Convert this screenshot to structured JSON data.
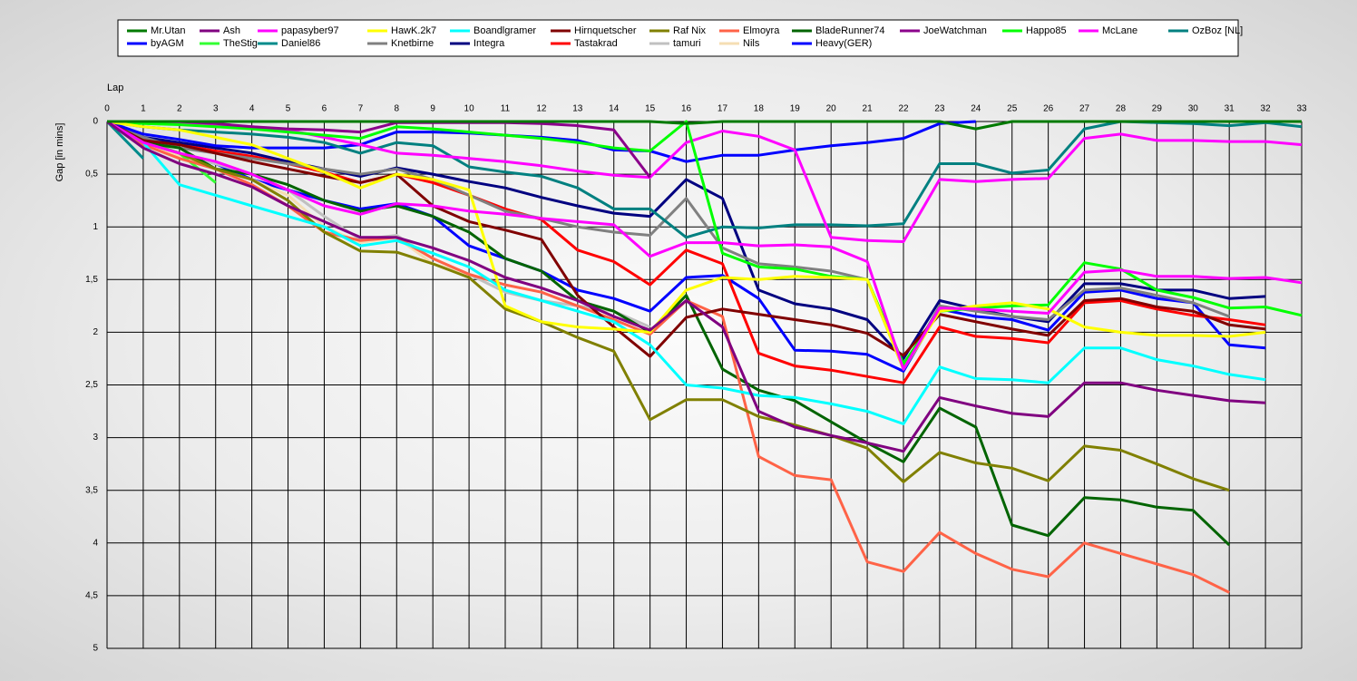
{
  "chart_data": {
    "type": "line",
    "xlabel": "Lap",
    "ylabel": "Gap [in mins]",
    "x": [
      0,
      1,
      2,
      3,
      4,
      5,
      6,
      7,
      8,
      9,
      10,
      11,
      12,
      13,
      14,
      15,
      16,
      17,
      18,
      19,
      20,
      21,
      22,
      23,
      24,
      25,
      26,
      27,
      28,
      29,
      30,
      31,
      32,
      33
    ],
    "xlim": [
      0,
      33
    ],
    "xticks": [
      0,
      1,
      2,
      3,
      4,
      5,
      6,
      7,
      8,
      9,
      10,
      11,
      12,
      13,
      14,
      15,
      16,
      17,
      18,
      19,
      20,
      21,
      22,
      23,
      24,
      25,
      26,
      27,
      28,
      29,
      30,
      31,
      32,
      33
    ],
    "ylim": [
      0,
      5
    ],
    "y_inverted": true,
    "yticks": [
      0,
      {
        "value": 0.5,
        "label": "0,5"
      },
      1,
      {
        "value": 1.5,
        "label": "1,5"
      },
      2,
      {
        "value": 2.5,
        "label": "2,5"
      },
      3,
      {
        "value": 3.5,
        "label": "3,5"
      },
      4,
      {
        "value": 4.5,
        "label": "4,5"
      },
      5
    ],
    "grid": true,
    "legend": "top",
    "series": [
      {
        "name": "Mr.Utan",
        "color": "#007a00",
        "values": [
          0,
          0,
          0,
          0,
          0,
          0,
          0,
          0,
          0,
          0,
          0,
          0,
          0,
          0,
          0,
          0,
          0.02,
          0,
          0,
          0,
          0,
          0,
          0,
          0,
          0.07,
          0,
          0,
          0,
          0,
          0,
          0,
          0,
          0,
          0
        ]
      },
      {
        "name": "Ash",
        "color": "#800080",
        "values": [
          0,
          0.25,
          0.4,
          0.5,
          0.62,
          0.8,
          0.95,
          1.1,
          1.1,
          1.2,
          1.32,
          1.48,
          1.58,
          1.7,
          1.85,
          1.98,
          1.7,
          1.95,
          2.75,
          2.9,
          2.98,
          3.05,
          3.13,
          2.62,
          2.7,
          2.77,
          2.8,
          2.48,
          2.48,
          2.55,
          2.6,
          2.65,
          2.67,
          null
        ]
      },
      {
        "name": "papasyber97",
        "color": "#ff00ff",
        "values": [
          0,
          0.2,
          0.3,
          0.38,
          0.5,
          0.65,
          0.8,
          0.88,
          0.78,
          0.8,
          0.85,
          0.88,
          0.92,
          0.95,
          0.98,
          1.28,
          1.15,
          1.15,
          1.18,
          1.17,
          1.19,
          1.33,
          2.35,
          1.77,
          1.78,
          1.8,
          1.82,
          1.43,
          1.41,
          1.47,
          1.47,
          1.49,
          1.48,
          1.53
        ]
      },
      {
        "name": "HawK.2k7",
        "color": "#ffff00",
        "values": [
          0,
          0.05,
          0.08,
          0.15,
          0.22,
          0.35,
          0.48,
          0.63,
          0.5,
          0.55,
          0.65,
          1.75,
          1.9,
          1.95,
          1.97,
          2.0,
          1.6,
          1.48,
          1.5,
          1.47,
          1.48,
          1.5,
          2.35,
          1.8,
          1.75,
          1.72,
          1.78,
          1.95,
          2.0,
          2.03,
          2.03,
          2.04,
          2.0,
          null
        ]
      },
      {
        "name": "Boandlgramer",
        "color": "#00ffff",
        "values": [
          0,
          0.2,
          0.6,
          0.7,
          0.8,
          0.9,
          1.0,
          1.18,
          1.13,
          1.25,
          1.38,
          1.6,
          1.7,
          1.8,
          1.9,
          2.12,
          2.5,
          2.53,
          2.6,
          2.62,
          2.68,
          2.75,
          2.87,
          2.33,
          2.44,
          2.45,
          2.48,
          2.15,
          2.15,
          2.26,
          2.32,
          2.4,
          2.45,
          null
        ]
      },
      {
        "name": "Hirnquetscher",
        "color": "#800000",
        "values": [
          0,
          0.18,
          0.22,
          0.3,
          0.38,
          0.45,
          0.52,
          0.58,
          0.5,
          0.8,
          0.95,
          1.03,
          1.12,
          1.65,
          1.95,
          2.23,
          1.86,
          1.78,
          1.83,
          1.88,
          1.93,
          2.01,
          2.22,
          1.83,
          1.9,
          1.97,
          2.03,
          1.7,
          1.68,
          1.76,
          1.8,
          1.93,
          1.97,
          null
        ]
      },
      {
        "name": "Raf Nix",
        "color": "#808000",
        "values": [
          0,
          0.2,
          0.3,
          0.45,
          0.55,
          0.75,
          1.05,
          1.23,
          1.24,
          1.35,
          1.48,
          1.78,
          1.9,
          2.05,
          2.18,
          2.83,
          2.64,
          2.64,
          2.8,
          2.88,
          2.98,
          3.1,
          3.42,
          3.14,
          3.24,
          3.29,
          3.41,
          3.08,
          3.12,
          3.25,
          3.39,
          3.5,
          null,
          null
        ]
      },
      {
        "name": "Elmoyra",
        "color": "#ff6347",
        "values": [
          0,
          0.22,
          0.35,
          0.45,
          0.6,
          0.8,
          1.05,
          1.13,
          1.1,
          1.3,
          1.45,
          1.55,
          1.62,
          1.75,
          1.88,
          2.02,
          1.7,
          1.85,
          3.18,
          3.36,
          3.4,
          4.18,
          4.27,
          3.9,
          4.1,
          4.25,
          4.32,
          4.0,
          4.1,
          4.2,
          4.3,
          4.47,
          null,
          null
        ]
      },
      {
        "name": "BladeRunner74",
        "color": "#006400",
        "values": [
          0,
          0.2,
          0.25,
          0.45,
          0.5,
          0.6,
          0.75,
          0.85,
          0.8,
          0.9,
          1.05,
          1.3,
          1.42,
          1.7,
          1.8,
          2.0,
          1.65,
          2.35,
          2.55,
          2.65,
          2.85,
          3.05,
          3.23,
          2.72,
          2.9,
          3.83,
          3.93,
          3.57,
          3.59,
          3.66,
          3.69,
          4.02,
          null,
          null
        ]
      },
      {
        "name": "JoeWatchman",
        "color": "#8b008b",
        "values": [
          0,
          0,
          0,
          0.02,
          0.05,
          0.07,
          0.08,
          0.1,
          0.01,
          0.01,
          0.01,
          0.01,
          0.02,
          0.04,
          0.08,
          0.53,
          null,
          null,
          null,
          null,
          null,
          null,
          null,
          null,
          null,
          null,
          null,
          null,
          null,
          null,
          null,
          null,
          null,
          null
        ]
      },
      {
        "name": "Happo85",
        "color": "#00ff00",
        "values": [
          0,
          0.02,
          0.03,
          0.05,
          0.07,
          0.1,
          0.13,
          0.16,
          0.05,
          0.07,
          0.1,
          0.13,
          0.16,
          0.2,
          0.25,
          0.28,
          0,
          1.25,
          1.38,
          1.4,
          1.47,
          1.5,
          2.3,
          1.8,
          1.77,
          1.75,
          1.74,
          1.34,
          1.4,
          1.6,
          1.67,
          1.77,
          1.76,
          1.84
        ]
      },
      {
        "name": "McLane",
        "color": "#ff00ff",
        "values": [
          0,
          0.01,
          0.01,
          0.03,
          0.05,
          0.08,
          0.15,
          0.22,
          0.3,
          0.32,
          0.35,
          0.38,
          0.42,
          0.47,
          0.51,
          0.53,
          0.2,
          0.09,
          0.14,
          0.27,
          1.1,
          1.13,
          1.14,
          0.55,
          0.57,
          0.55,
          0.54,
          0.16,
          0.12,
          0.18,
          0.18,
          0.19,
          0.19,
          0.22
        ]
      },
      {
        "name": "OzBoz [NL]",
        "color": "#008080",
        "values": [
          0,
          0.05,
          0.08,
          0.1,
          0.12,
          0.15,
          0.2,
          0.3,
          0.2,
          0.23,
          0.43,
          0.48,
          0.52,
          0.63,
          0.83,
          0.83,
          1.1,
          1.0,
          1.01,
          0.98,
          0.98,
          0.99,
          0.97,
          0.4,
          0.4,
          0.49,
          0.46,
          0.07,
          0,
          0.01,
          0.02,
          0.04,
          0.01,
          0.05
        ]
      },
      {
        "name": "byAGM",
        "color": "#0000ff",
        "values": [
          0,
          0.12,
          0.17,
          0.23,
          0.25,
          0.25,
          0.25,
          0.22,
          0.1,
          0.1,
          0.11,
          0.13,
          0.15,
          0.18,
          0.27,
          0.28,
          0.38,
          0.32,
          0.32,
          0.27,
          0.23,
          0.2,
          0.16,
          0.02,
          0,
          null,
          null,
          null,
          null,
          null,
          null,
          null,
          null,
          null
        ]
      },
      {
        "name": "TheStig",
        "color": "#33ff33",
        "values": [
          0,
          0.18,
          0.3,
          0.58,
          null,
          null,
          null,
          null,
          null,
          null,
          null,
          null,
          null,
          null,
          null,
          null,
          null,
          null,
          null,
          null,
          null,
          null,
          null,
          null,
          null,
          null,
          null,
          null,
          null,
          null,
          null,
          null,
          null,
          null
        ]
      },
      {
        "name": "Daniel86",
        "color": "#008b8b",
        "values": [
          0,
          0.35,
          null,
          null,
          null,
          null,
          null,
          null,
          null,
          null,
          null,
          null,
          null,
          null,
          null,
          null,
          null,
          null,
          null,
          null,
          null,
          null,
          null,
          null,
          null,
          null,
          null,
          null,
          null,
          null,
          null,
          null,
          null,
          null
        ]
      },
      {
        "name": "Knetbirne",
        "color": "#808080",
        "values": [
          0,
          0.15,
          0.25,
          0.3,
          0.35,
          0.4,
          0.45,
          0.5,
          0.45,
          0.55,
          0.7,
          0.85,
          0.92,
          1.0,
          1.05,
          1.08,
          0.73,
          1.2,
          1.35,
          1.38,
          1.42,
          1.5,
          2.35,
          1.75,
          1.8,
          1.85,
          1.88,
          1.6,
          1.58,
          1.65,
          1.72,
          1.85,
          null,
          null
        ]
      },
      {
        "name": "Integra",
        "color": "#000080",
        "values": [
          0,
          0.15,
          0.2,
          0.25,
          0.3,
          0.38,
          0.45,
          0.52,
          0.44,
          0.5,
          0.57,
          0.63,
          0.72,
          0.8,
          0.87,
          0.9,
          0.55,
          0.73,
          1.6,
          1.73,
          1.78,
          1.88,
          2.25,
          1.7,
          1.78,
          1.85,
          1.9,
          1.54,
          1.54,
          1.6,
          1.6,
          1.68,
          1.66,
          null
        ]
      },
      {
        "name": "Tastakrad",
        "color": "#ff0000",
        "values": [
          0,
          0.17,
          0.22,
          0.28,
          0.33,
          0.4,
          0.48,
          0.58,
          0.5,
          0.58,
          0.7,
          0.83,
          0.93,
          1.22,
          1.33,
          1.55,
          1.22,
          1.35,
          2.2,
          2.32,
          2.36,
          2.42,
          2.48,
          1.95,
          2.04,
          2.06,
          2.1,
          1.72,
          1.7,
          1.78,
          1.84,
          1.88,
          1.93,
          null
        ]
      },
      {
        "name": "tamuri",
        "color": "#c0c0c0",
        "values": [
          0,
          0.18,
          0.3,
          0.4,
          0.5,
          0.65,
          0.9,
          1.12,
          1.08,
          1.3,
          1.45,
          1.62,
          1.7,
          1.75,
          1.8,
          1.95,
          null,
          null,
          null,
          null,
          null,
          null,
          null,
          null,
          null,
          null,
          null,
          null,
          null,
          null,
          null,
          null,
          null,
          null
        ]
      },
      {
        "name": "Nils",
        "color": "#f5deb3",
        "values": [
          0,
          0.2,
          0.33,
          0.45,
          0.55,
          0.7,
          1.0,
          1.15,
          1.1,
          1.35,
          1.45,
          null,
          null,
          null,
          null,
          null,
          null,
          null,
          null,
          null,
          null,
          null,
          null,
          null,
          null,
          null,
          null,
          null,
          null,
          null,
          null,
          null,
          null,
          null
        ]
      },
      {
        "name": "Heavy(GER)",
        "color": "#0000ff",
        "values": [
          0,
          0.2,
          0.3,
          0.4,
          0.55,
          0.65,
          0.75,
          0.83,
          0.78,
          0.9,
          1.18,
          1.3,
          1.42,
          1.6,
          1.68,
          1.8,
          1.48,
          1.46,
          1.68,
          2.17,
          2.18,
          2.21,
          2.37,
          1.78,
          1.85,
          1.88,
          1.98,
          1.62,
          1.6,
          1.68,
          1.72,
          2.12,
          2.15,
          null
        ]
      }
    ]
  }
}
